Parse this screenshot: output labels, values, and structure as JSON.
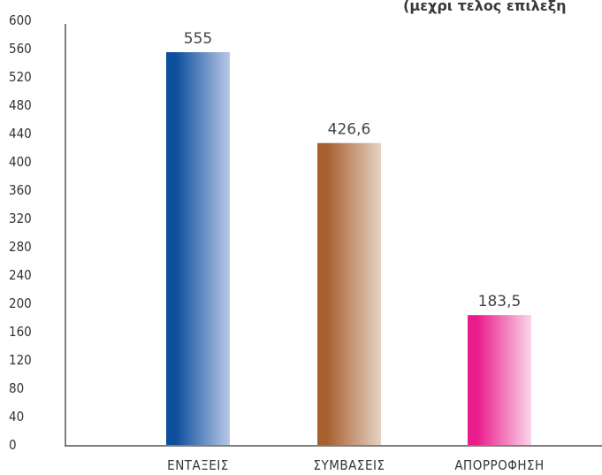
{
  "chart_data": {
    "type": "bar",
    "title_fragment": "(μεχρι τελος επιλεξη",
    "categories": [
      "ΕΝΤΑΞΕΙΣ",
      "ΣΥΜΒΑΣΕΙΣ",
      "ΑΠΟΡΡΟΦΗΣΗ"
    ],
    "values": [
      555,
      426.6,
      183.5
    ],
    "value_labels": [
      "555",
      "426,6",
      "183,5"
    ],
    "ylim": [
      0,
      600
    ],
    "yticks": [
      "0",
      "40",
      "80",
      "120",
      "160",
      "200",
      "240",
      "280",
      "320",
      "360",
      "400",
      "440",
      "480",
      "520",
      "560",
      "600"
    ],
    "bar_gradients": [
      {
        "start": "#0d4f9c",
        "end": "#b9c8e8"
      },
      {
        "start": "#a8602f",
        "end": "#e6d2c4"
      },
      {
        "start": "#ea1c8c",
        "end": "#fad6ea"
      }
    ],
    "grid": false,
    "legend": "none"
  }
}
